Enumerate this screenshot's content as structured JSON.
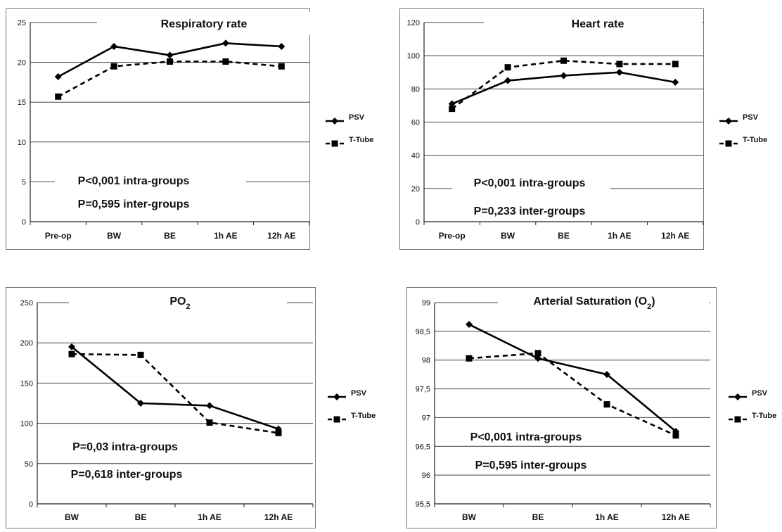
{
  "chart_data": [
    {
      "type": "line",
      "title": "Respiratory rate",
      "title_sub": "",
      "categories": [
        "Pre-op",
        "BW",
        "BE",
        "1h AE",
        "12h AE"
      ],
      "ylim": [
        0,
        25
      ],
      "yticks": [
        0,
        5,
        10,
        15,
        20,
        25
      ],
      "ytick_labels": [
        "0",
        "5",
        "10",
        "15",
        "20",
        "25"
      ],
      "grid": true,
      "legend_position": "right",
      "series": [
        {
          "name": "PSV",
          "style": "solid",
          "marker": "diamond",
          "values": [
            18.2,
            22.0,
            20.9,
            22.4,
            22.0
          ]
        },
        {
          "name": "T-Tube",
          "style": "dashed",
          "marker": "square",
          "values": [
            15.7,
            19.5,
            20.1,
            20.1,
            19.5
          ]
        }
      ],
      "annotations": [
        "P<0,001 intra-groups",
        "P=0,595  inter-groups"
      ]
    },
    {
      "type": "line",
      "title": "Heart  rate",
      "title_sub": "",
      "categories": [
        "Pre-op",
        "BW",
        "BE",
        "1h AE",
        "12h AE"
      ],
      "ylim": [
        0,
        120
      ],
      "yticks": [
        0,
        20,
        40,
        60,
        80,
        100,
        120
      ],
      "ytick_labels": [
        "0",
        "20",
        "40",
        "60",
        "80",
        "100",
        "120"
      ],
      "grid": true,
      "legend_position": "right",
      "series": [
        {
          "name": "PSV",
          "style": "solid",
          "marker": "diamond",
          "values": [
            71,
            85,
            88,
            90,
            84
          ]
        },
        {
          "name": "T-Tube",
          "style": "dashed",
          "marker": "square",
          "values": [
            68,
            93,
            97,
            95,
            95
          ]
        }
      ],
      "annotations": [
        "P<0,001 intra-groups",
        "P=0,233  inter-groups"
      ]
    },
    {
      "type": "line",
      "title": "PO",
      "title_sub": "2",
      "categories": [
        "BW",
        "BE",
        "1h AE",
        "12h AE"
      ],
      "ylim": [
        0,
        250
      ],
      "yticks": [
        0,
        50,
        100,
        150,
        200,
        250
      ],
      "ytick_labels": [
        "0",
        "50",
        "100",
        "150",
        "200",
        "250"
      ],
      "grid": true,
      "legend_position": "right",
      "series": [
        {
          "name": "PSV",
          "style": "solid",
          "marker": "diamond",
          "values": [
            195,
            125,
            122,
            93
          ]
        },
        {
          "name": "T-Tube",
          "style": "dashed",
          "marker": "square",
          "values": [
            186,
            185,
            101,
            88
          ]
        }
      ],
      "annotations": [
        "P=0,03 intra-groups",
        "P=0,618  inter-groups"
      ]
    },
    {
      "type": "line",
      "title": "Arterial Saturation (O",
      "title_sub": "2",
      "title_after": ")",
      "categories": [
        "BW",
        "BE",
        "1h AE",
        "12h AE"
      ],
      "ylim": [
        95.5,
        99
      ],
      "yticks": [
        95.5,
        96,
        96.5,
        97,
        97.5,
        98,
        98.5,
        99
      ],
      "ytick_labels": [
        "95,5",
        "96",
        "96,5",
        "97",
        "97,5",
        "98",
        "98,5",
        "99"
      ],
      "grid": true,
      "legend_position": "right",
      "series": [
        {
          "name": "PSV",
          "style": "solid",
          "marker": "diamond",
          "values": [
            98.62,
            98.03,
            97.75,
            96.76
          ]
        },
        {
          "name": "T-Tube",
          "style": "dashed",
          "marker": "square",
          "values": [
            98.03,
            98.12,
            97.23,
            96.69
          ]
        }
      ],
      "annotations": [
        "P<0,001 intra-groups",
        "P=0,595  inter-groups"
      ]
    }
  ]
}
